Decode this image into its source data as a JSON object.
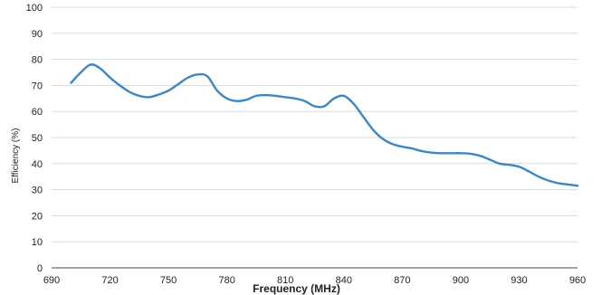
{
  "chart_data": {
    "type": "line",
    "title": "",
    "xlabel": "Frequency (MHz)",
    "ylabel": "Efficiency (%)",
    "xlim": [
      690,
      960
    ],
    "ylim": [
      0,
      100
    ],
    "x_ticks": [
      690,
      720,
      750,
      780,
      810,
      840,
      870,
      900,
      930,
      960
    ],
    "y_ticks": [
      0,
      10,
      20,
      30,
      40,
      50,
      60,
      70,
      80,
      90,
      100
    ],
    "grid": "horizontal",
    "legend": "none",
    "series": [
      {
        "color": "#3b87c4",
        "x": [
          700,
          705,
          710,
          715,
          720,
          725,
          730,
          735,
          740,
          745,
          750,
          755,
          760,
          765,
          770,
          775,
          780,
          785,
          790,
          795,
          800,
          805,
          810,
          815,
          820,
          825,
          830,
          835,
          840,
          845,
          850,
          855,
          860,
          865,
          870,
          875,
          880,
          885,
          890,
          895,
          900,
          905,
          910,
          915,
          920,
          925,
          930,
          935,
          940,
          945,
          950,
          955,
          960
        ],
        "y": [
          71,
          75,
          78,
          76.5,
          73,
          70,
          67.5,
          66,
          65.5,
          66.5,
          68,
          70.5,
          73,
          74.2,
          73.5,
          68,
          65,
          64,
          64.5,
          66,
          66.3,
          66,
          65.5,
          65,
          64,
          62,
          62,
          65,
          66,
          63,
          58,
          53,
          49.5,
          47.5,
          46.5,
          45.8,
          44.8,
          44.2,
          44,
          44,
          44,
          43.8,
          43,
          41.5,
          40,
          39.5,
          38.8,
          37,
          35,
          33.5,
          32.5,
          32,
          31.5
        ]
      }
    ]
  }
}
